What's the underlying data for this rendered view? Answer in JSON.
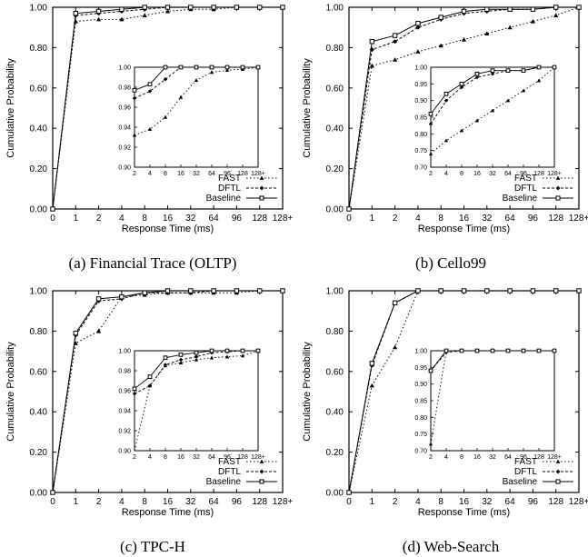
{
  "figure": {
    "captions": [
      "(a) Financial Trace (OLTP)",
      "(b) Cello99",
      "(c) TPC-H",
      "(d) Web-Search"
    ]
  },
  "chart_data": [
    {
      "type": "line",
      "caption": "(a) Financial Trace (OLTP)",
      "xlabel": "Response Time (ms)",
      "ylabel": "Cumulative Probability",
      "x_ticks": [
        "0",
        "1",
        "2",
        "4",
        "8",
        "16",
        "32",
        "64",
        "96",
        "128",
        "128+"
      ],
      "y_ticks": [
        "0.00",
        "0.20",
        "0.40",
        "0.60",
        "0.80",
        "1.00"
      ],
      "ylim": [
        0,
        1
      ],
      "legend_position": "bottom-right",
      "series": [
        {
          "name": "FAST",
          "style": "dotted-triangle",
          "values": [
            0,
            0.93,
            0.94,
            0.94,
            0.96,
            0.98,
            0.99,
            0.99,
            1.0,
            1.0,
            1.0
          ]
        },
        {
          "name": "DFTL",
          "style": "dashed-diamond",
          "values": [
            0,
            0.96,
            0.97,
            0.98,
            0.99,
            1.0,
            1.0,
            1.0,
            1.0,
            1.0,
            1.0
          ]
        },
        {
          "name": "Baseline",
          "style": "solid-square",
          "values": [
            0,
            0.97,
            0.98,
            0.99,
            1.0,
            1.0,
            1.0,
            1.0,
            1.0,
            1.0,
            1.0
          ]
        }
      ],
      "inset": {
        "x_ticks": [
          "2",
          "4",
          "8",
          "16",
          "32",
          "64",
          "96",
          "128",
          "128+"
        ],
        "y_ticks": [
          "0.90",
          "0.92",
          "0.94",
          "0.96",
          "0.98",
          "1.00"
        ],
        "ylim": [
          0.9,
          1.0
        ],
        "series": [
          {
            "name": "FAST",
            "values": [
              0.932,
              0.938,
              0.95,
              0.97,
              0.987,
              0.995,
              0.997,
              0.998,
              1.0
            ]
          },
          {
            "name": "DFTL",
            "values": [
              0.969,
              0.976,
              0.988,
              1.0,
              1.0,
              1.0,
              1.0,
              1.0,
              1.0
            ]
          },
          {
            "name": "Baseline",
            "values": [
              0.977,
              0.983,
              1.0,
              1.0,
              1.0,
              1.0,
              1.0,
              1.0,
              1.0
            ]
          }
        ]
      }
    },
    {
      "type": "line",
      "caption": "(b) Cello99",
      "xlabel": "Response Time (ms)",
      "ylabel": "Cumulative Probability",
      "x_ticks": [
        "0",
        "1",
        "2",
        "4",
        "8",
        "16",
        "32",
        "64",
        "96",
        "128",
        "128+"
      ],
      "y_ticks": [
        "0.00",
        "0.20",
        "0.40",
        "0.60",
        "0.80",
        "1.00"
      ],
      "ylim": [
        0,
        1
      ],
      "legend_position": "bottom-right",
      "series": [
        {
          "name": "FAST",
          "style": "dotted-triangle",
          "values": [
            0,
            0.71,
            0.74,
            0.78,
            0.81,
            0.84,
            0.87,
            0.9,
            0.93,
            0.96,
            1.0
          ]
        },
        {
          "name": "DFTL",
          "style": "dashed-diamond",
          "values": [
            0,
            0.79,
            0.83,
            0.9,
            0.94,
            0.97,
            0.98,
            0.99,
            0.99,
            1.0,
            1.0
          ]
        },
        {
          "name": "Baseline",
          "style": "solid-square",
          "values": [
            0,
            0.83,
            0.86,
            0.92,
            0.95,
            0.98,
            0.99,
            0.99,
            0.99,
            1.0,
            1.0
          ]
        }
      ],
      "inset": {
        "x_ticks": [
          "2",
          "4",
          "8",
          "16",
          "32",
          "64",
          "96",
          "128",
          "128+"
        ],
        "y_ticks": [
          "0.70",
          "0.75",
          "0.80",
          "0.85",
          "0.90",
          "0.95",
          "1.00"
        ],
        "ylim": [
          0.7,
          1.0
        ],
        "series": [
          {
            "name": "FAST",
            "values": [
              0.74,
              0.78,
              0.81,
              0.84,
              0.87,
              0.9,
              0.93,
              0.96,
              1.0
            ]
          },
          {
            "name": "DFTL",
            "values": [
              0.83,
              0.9,
              0.94,
              0.97,
              0.98,
              0.99,
              0.99,
              1.0,
              1.0
            ]
          },
          {
            "name": "Baseline",
            "values": [
              0.86,
              0.92,
              0.95,
              0.98,
              0.99,
              0.99,
              0.99,
              1.0,
              1.0
            ]
          }
        ]
      }
    },
    {
      "type": "line",
      "caption": "(c) TPC-H",
      "xlabel": "Response Time (ms)",
      "ylabel": "Cumulative Probability",
      "x_ticks": [
        "0",
        "1",
        "2",
        "4",
        "8",
        "16",
        "32",
        "64",
        "96",
        "128",
        "128+"
      ],
      "y_ticks": [
        "0.00",
        "0.20",
        "0.40",
        "0.60",
        "0.80",
        "1.00"
      ],
      "ylim": [
        0,
        1
      ],
      "legend_position": "bottom-right",
      "series": [
        {
          "name": "FAST",
          "style": "dotted-triangle",
          "values": [
            0,
            0.74,
            0.8,
            0.97,
            0.98,
            0.99,
            0.99,
            0.99,
            0.99,
            1.0,
            1.0
          ]
        },
        {
          "name": "DFTL",
          "style": "dashed-diamond",
          "values": [
            0,
            0.78,
            0.95,
            0.96,
            0.99,
            0.99,
            0.99,
            1.0,
            1.0,
            1.0,
            1.0
          ]
        },
        {
          "name": "Baseline",
          "style": "solid-square",
          "values": [
            0,
            0.79,
            0.96,
            0.97,
            0.99,
            1.0,
            1.0,
            1.0,
            1.0,
            1.0,
            1.0
          ]
        }
      ],
      "inset": {
        "x_ticks": [
          "2",
          "4",
          "8",
          "16",
          "32",
          "64",
          "96",
          "128",
          "128+"
        ],
        "y_ticks": [
          "0.90",
          "0.92",
          "0.94",
          "0.96",
          "0.98",
          "1.00"
        ],
        "ylim": [
          0.9,
          1.0
        ],
        "series": [
          {
            "name": "FAST",
            "values": [
              0.8,
              0.965,
              0.985,
              0.988,
              0.991,
              0.993,
              0.994,
              0.995,
              1.0
            ]
          },
          {
            "name": "DFTL",
            "values": [
              0.957,
              0.965,
              0.986,
              0.991,
              0.994,
              0.998,
              0.999,
              1.0,
              1.0
            ]
          },
          {
            "name": "Baseline",
            "values": [
              0.962,
              0.974,
              0.993,
              0.996,
              0.998,
              1.0,
              1.0,
              1.0,
              1.0
            ]
          }
        ]
      }
    },
    {
      "type": "line",
      "caption": "(d) Web-Search",
      "xlabel": "Response Time (ms)",
      "ylabel": "Cumulative Probability",
      "x_ticks": [
        "0",
        "1",
        "2",
        "4",
        "8",
        "16",
        "32",
        "64",
        "96",
        "128",
        "128+"
      ],
      "y_ticks": [
        "0.00",
        "0.20",
        "0.40",
        "0.60",
        "0.80",
        "1.00"
      ],
      "ylim": [
        0,
        1
      ],
      "legend_position": "bottom-right",
      "series": [
        {
          "name": "FAST",
          "style": "dotted-triangle",
          "values": [
            0,
            0.53,
            0.72,
            1.0,
            1.0,
            1.0,
            1.0,
            1.0,
            1.0,
            1.0,
            1.0
          ]
        },
        {
          "name": "DFTL",
          "style": "dashed-diamond",
          "values": [
            0,
            0.63,
            0.94,
            1.0,
            1.0,
            1.0,
            1.0,
            1.0,
            1.0,
            1.0,
            1.0
          ]
        },
        {
          "name": "Baseline",
          "style": "solid-square",
          "values": [
            0,
            0.64,
            0.94,
            1.0,
            1.0,
            1.0,
            1.0,
            1.0,
            1.0,
            1.0,
            1.0
          ]
        }
      ],
      "inset": {
        "x_ticks": [
          "2",
          "4",
          "8",
          "16",
          "32",
          "64",
          "96",
          "128",
          "128+"
        ],
        "y_ticks": [
          "0.70",
          "0.75",
          "0.80",
          "0.85",
          "0.90",
          "0.95",
          "1.00"
        ],
        "ylim": [
          0.7,
          1.0
        ],
        "series": [
          {
            "name": "FAST",
            "values": [
              0.72,
              1.0,
              1.0,
              1.0,
              1.0,
              1.0,
              1.0,
              1.0,
              1.0
            ]
          },
          {
            "name": "DFTL",
            "values": [
              0.94,
              0.995,
              1.0,
              1.0,
              1.0,
              1.0,
              1.0,
              1.0,
              1.0
            ]
          },
          {
            "name": "Baseline",
            "values": [
              0.94,
              1.0,
              1.0,
              1.0,
              1.0,
              1.0,
              1.0,
              1.0,
              1.0
            ]
          }
        ]
      }
    }
  ]
}
